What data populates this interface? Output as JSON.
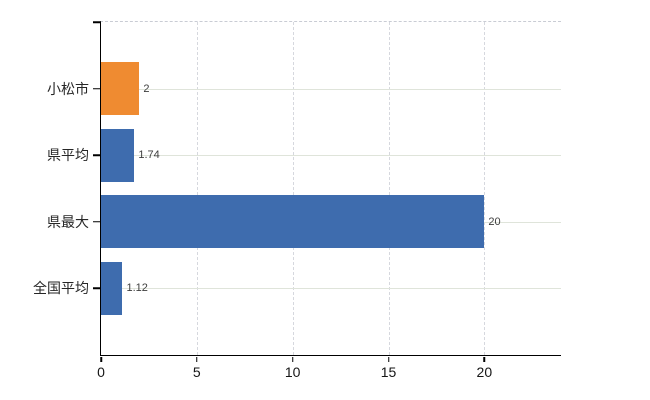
{
  "chart_data": {
    "type": "bar",
    "orientation": "horizontal",
    "title": "",
    "xlabel": "",
    "ylabel": "",
    "categories": [
      "小松市",
      "県平均",
      "県最大",
      "全国平均"
    ],
    "values": [
      2,
      1.74,
      20,
      1.12
    ],
    "value_labels": [
      "2",
      "1.74",
      "20",
      "1.12"
    ],
    "bar_colors": [
      "#ef8b31",
      "#3e6cae",
      "#3e6cae",
      "#3e6cae"
    ],
    "highlight_color": "#ef8b31",
    "series_color": "#3e6cae",
    "xlim": [
      0,
      24
    ],
    "x_ticks": [
      0,
      5,
      10,
      15,
      20
    ],
    "grid": "on",
    "legend": "none"
  }
}
